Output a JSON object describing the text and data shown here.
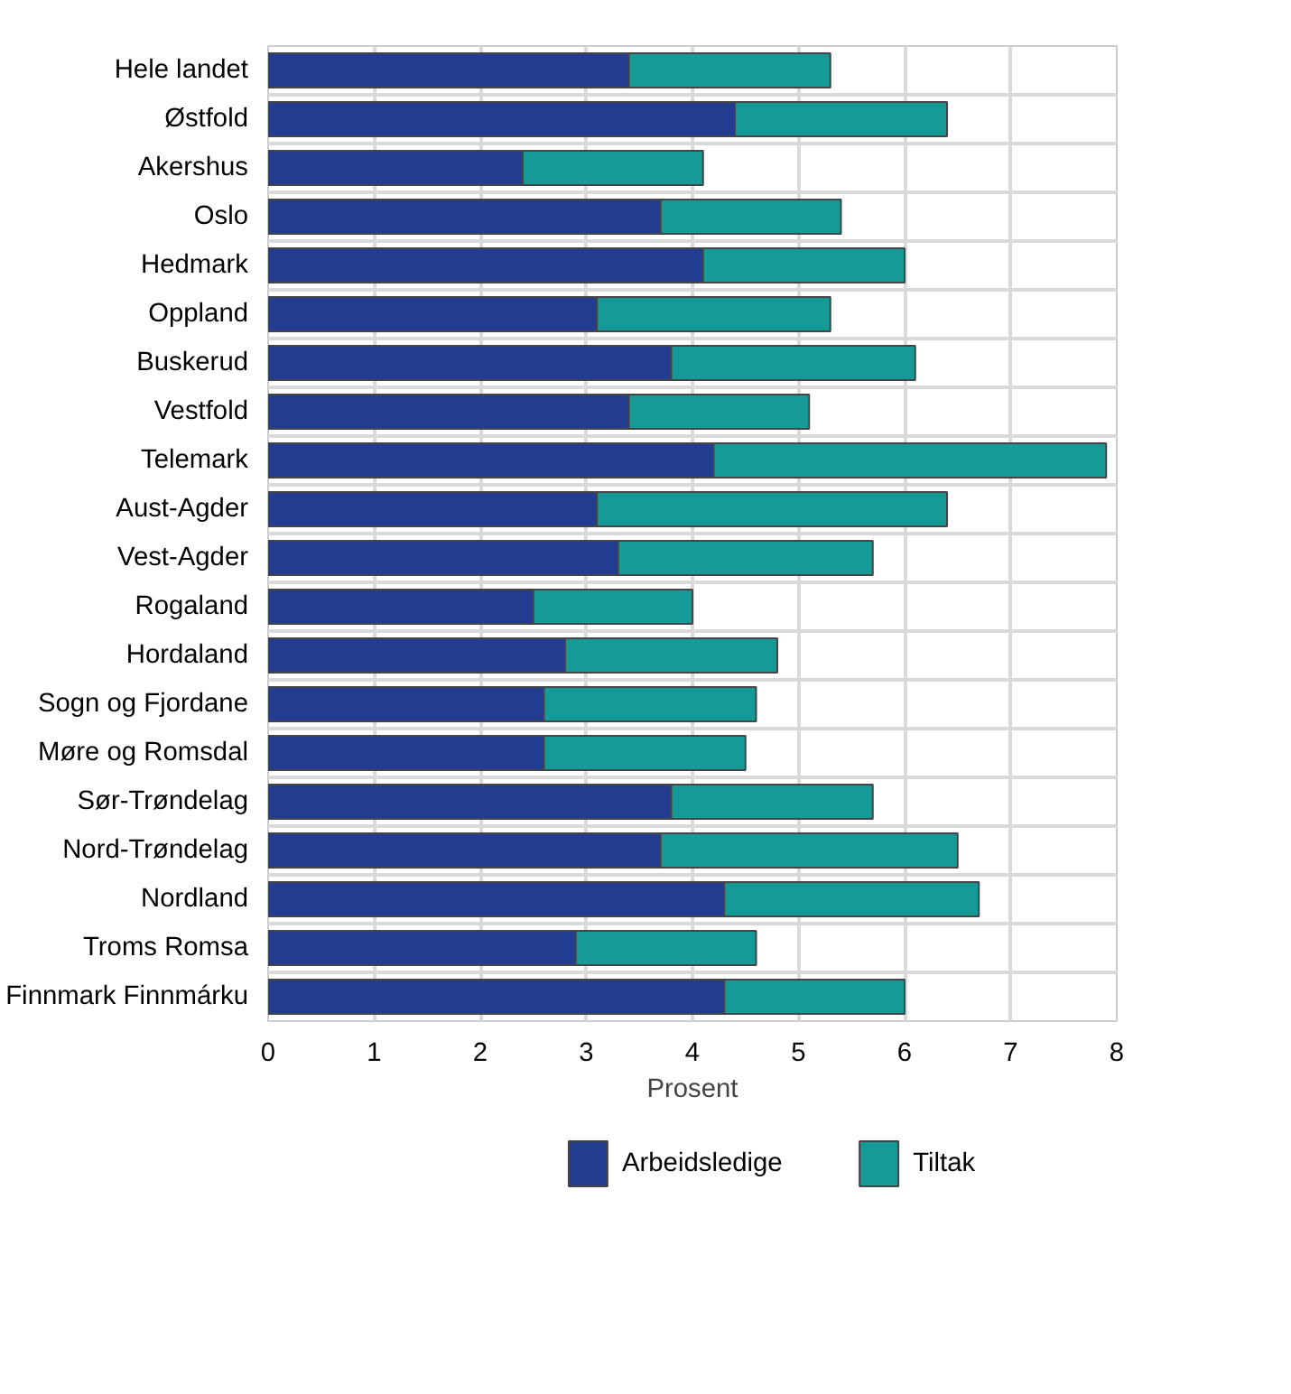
{
  "chart_data": {
    "type": "bar",
    "orientation": "horizontal",
    "stacked": true,
    "xlabel": "Prosent",
    "categories": [
      "Hele landet",
      "Østfold",
      "Akershus",
      "Oslo",
      "Hedmark",
      "Oppland",
      "Buskerud",
      "Vestfold",
      "Telemark",
      "Aust-Agder",
      "Vest-Agder",
      "Rogaland",
      "Hordaland",
      "Sogn og Fjordane",
      "Møre og Romsdal",
      "Sør-Trøndelag",
      "Nord-Trøndelag",
      "Nordland",
      "Troms Romsa",
      "Finnmark Finnmárku"
    ],
    "series": [
      {
        "name": "Arbeidsledige",
        "color": "#223d8f",
        "values": [
          3.4,
          4.4,
          2.4,
          3.7,
          4.1,
          3.1,
          3.8,
          3.4,
          4.2,
          3.1,
          3.3,
          2.5,
          2.8,
          2.6,
          2.6,
          3.8,
          3.7,
          4.3,
          2.9,
          4.3
        ]
      },
      {
        "name": "Tiltak",
        "color": "#169a98",
        "values": [
          1.9,
          2.0,
          1.7,
          1.7,
          1.9,
          2.2,
          2.3,
          1.7,
          3.7,
          3.3,
          2.4,
          1.5,
          2.0,
          2.0,
          1.9,
          1.9,
          2.8,
          2.4,
          1.7,
          1.7
        ]
      }
    ],
    "xlim": [
      0,
      8
    ],
    "xticks": [
      0,
      1,
      2,
      3,
      4,
      5,
      6,
      7,
      8
    ],
    "grid": true,
    "legend": "bottom"
  }
}
